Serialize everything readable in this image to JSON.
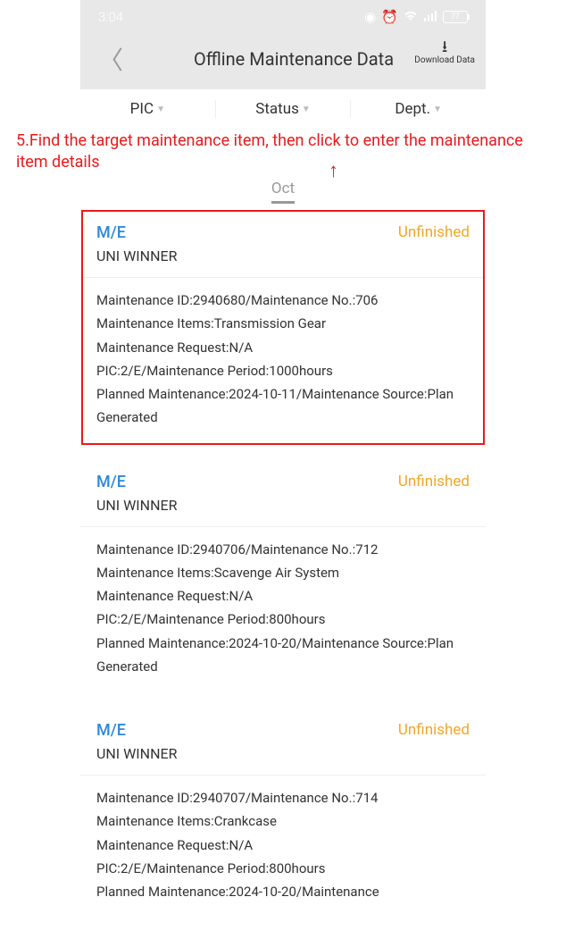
{
  "status_bar": {
    "time": "3:04",
    "battery": "77"
  },
  "nav": {
    "title": "Offline Maintenance Data",
    "download_label": "Download Data"
  },
  "filters": {
    "pic": "PIC",
    "status": "Status",
    "dept": "Dept."
  },
  "month": "Oct",
  "annotation": "5.Find the target maintenance item, then click to enter the maintenance item details",
  "cards": [
    {
      "category": "M/E",
      "status": "Unfinished",
      "status_color": "#f5a623",
      "vessel": "UNI WINNER",
      "highlighted": true,
      "lines": [
        "Maintenance ID:2940680/Maintenance No.:706",
        "Maintenance Items:Transmission Gear",
        "Maintenance Request:N/A",
        "PIC:2/E/Maintenance Period:1000hours",
        "Planned Maintenance:2024-10-11/Maintenance Source:Plan Generated"
      ]
    },
    {
      "category": "M/E",
      "status": "Unfinished",
      "status_color": "#f5a623",
      "vessel": "UNI WINNER",
      "highlighted": false,
      "lines": [
        "Maintenance ID:2940706/Maintenance No.:712",
        "Maintenance Items:Scavenge Air System",
        "Maintenance Request:N/A",
        "PIC:2/E/Maintenance Period:800hours",
        "Planned Maintenance:2024-10-20/Maintenance Source:Plan Generated"
      ]
    },
    {
      "category": "M/E",
      "status": "Unfinished",
      "status_color": "#f5a623",
      "vessel": "UNI WINNER",
      "highlighted": false,
      "lines": [
        "Maintenance ID:2940707/Maintenance No.:714",
        "Maintenance Items:Crankcase",
        "Maintenance Request:N/A",
        "PIC:2/E/Maintenance Period:800hours",
        "Planned Maintenance:2024-10-20/Maintenance"
      ]
    }
  ]
}
